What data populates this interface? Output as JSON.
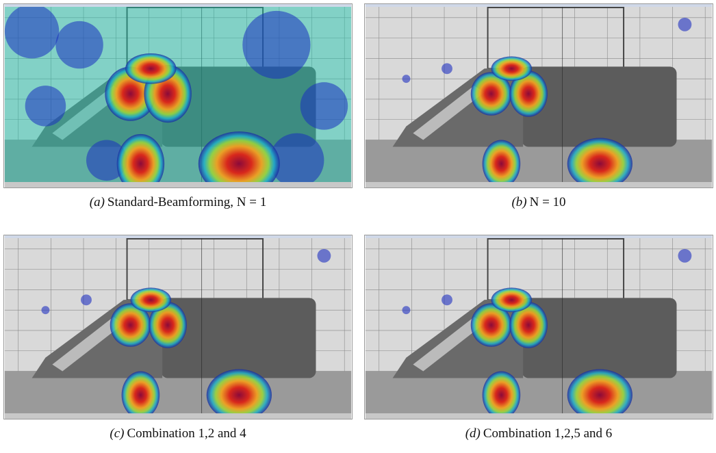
{
  "panels": [
    {
      "label": "(a)",
      "caption": "Standard-Beamforming, N = 1"
    },
    {
      "label": "(b)",
      "caption": "N = 10"
    },
    {
      "label": "(c)",
      "caption": "Combination 1,2 and 4"
    },
    {
      "label": "(d)",
      "caption": "Combination 1,2,5 and 6"
    }
  ]
}
